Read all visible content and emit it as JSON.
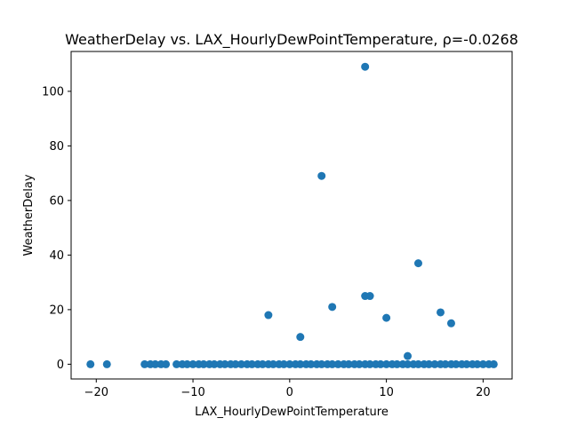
{
  "chart_data": {
    "type": "scatter",
    "title": "WeatherDelay vs. LAX_HourlyDewPointTemperature, ρ=-0.0268",
    "xlabel": "LAX_HourlyDewPointTemperature",
    "ylabel": "WeatherDelay",
    "xlim": [
      -22.6,
      23.0
    ],
    "ylim": [
      -5.4,
      114.6
    ],
    "x_ticks": [
      -20,
      -10,
      0,
      10,
      20
    ],
    "y_ticks": [
      0,
      20,
      40,
      60,
      80,
      100
    ],
    "x_tick_labels": [
      "−20",
      "−10",
      "0",
      "10",
      "20"
    ],
    "y_tick_labels": [
      "0",
      "20",
      "40",
      "60",
      "80",
      "100"
    ],
    "grid": false,
    "legend": "none",
    "marker_color": "#1f77b4",
    "series": [
      {
        "x": [
          7.8,
          3.3,
          13.3,
          7.8,
          8.3,
          4.4,
          10.0,
          15.6,
          16.7,
          -2.2,
          1.1,
          12.2,
          -20.6,
          -18.9,
          -15.0,
          -14.4,
          -13.9,
          -13.3,
          -12.8,
          -11.7,
          -11.1,
          -10.6,
          -10.0,
          -9.4,
          -8.9,
          -8.3,
          -7.8,
          -7.2,
          -6.7,
          -6.1,
          -5.6,
          -5.0,
          -4.4,
          -3.9,
          -3.3,
          -2.8,
          -2.2,
          -1.7,
          -1.1,
          -0.6,
          0.0,
          0.6,
          1.1,
          1.7,
          2.2,
          2.8,
          3.3,
          3.9,
          4.4,
          5.0,
          5.6,
          6.1,
          6.7,
          7.2,
          7.8,
          8.3,
          8.9,
          9.4,
          10.0,
          10.6,
          11.1,
          11.7,
          12.2,
          12.8,
          13.3,
          13.9,
          14.4,
          15.0,
          15.6,
          16.1,
          16.7,
          17.2,
          17.8,
          18.3,
          18.9,
          19.4,
          20.0,
          20.6,
          21.1
        ],
        "y": [
          109,
          69,
          37,
          25,
          25,
          21,
          17,
          19,
          15,
          18,
          10,
          3,
          0,
          0,
          0,
          0,
          0,
          0,
          0,
          0,
          0,
          0,
          0,
          0,
          0,
          0,
          0,
          0,
          0,
          0,
          0,
          0,
          0,
          0,
          0,
          0,
          0,
          0,
          0,
          0,
          0,
          0,
          0,
          0,
          0,
          0,
          0,
          0,
          0,
          0,
          0,
          0,
          0,
          0,
          0,
          0,
          0,
          0,
          0,
          0,
          0,
          0,
          0,
          0,
          0,
          0,
          0,
          0,
          0,
          0,
          0,
          0,
          0,
          0,
          0,
          0,
          0,
          0,
          0
        ]
      }
    ]
  }
}
